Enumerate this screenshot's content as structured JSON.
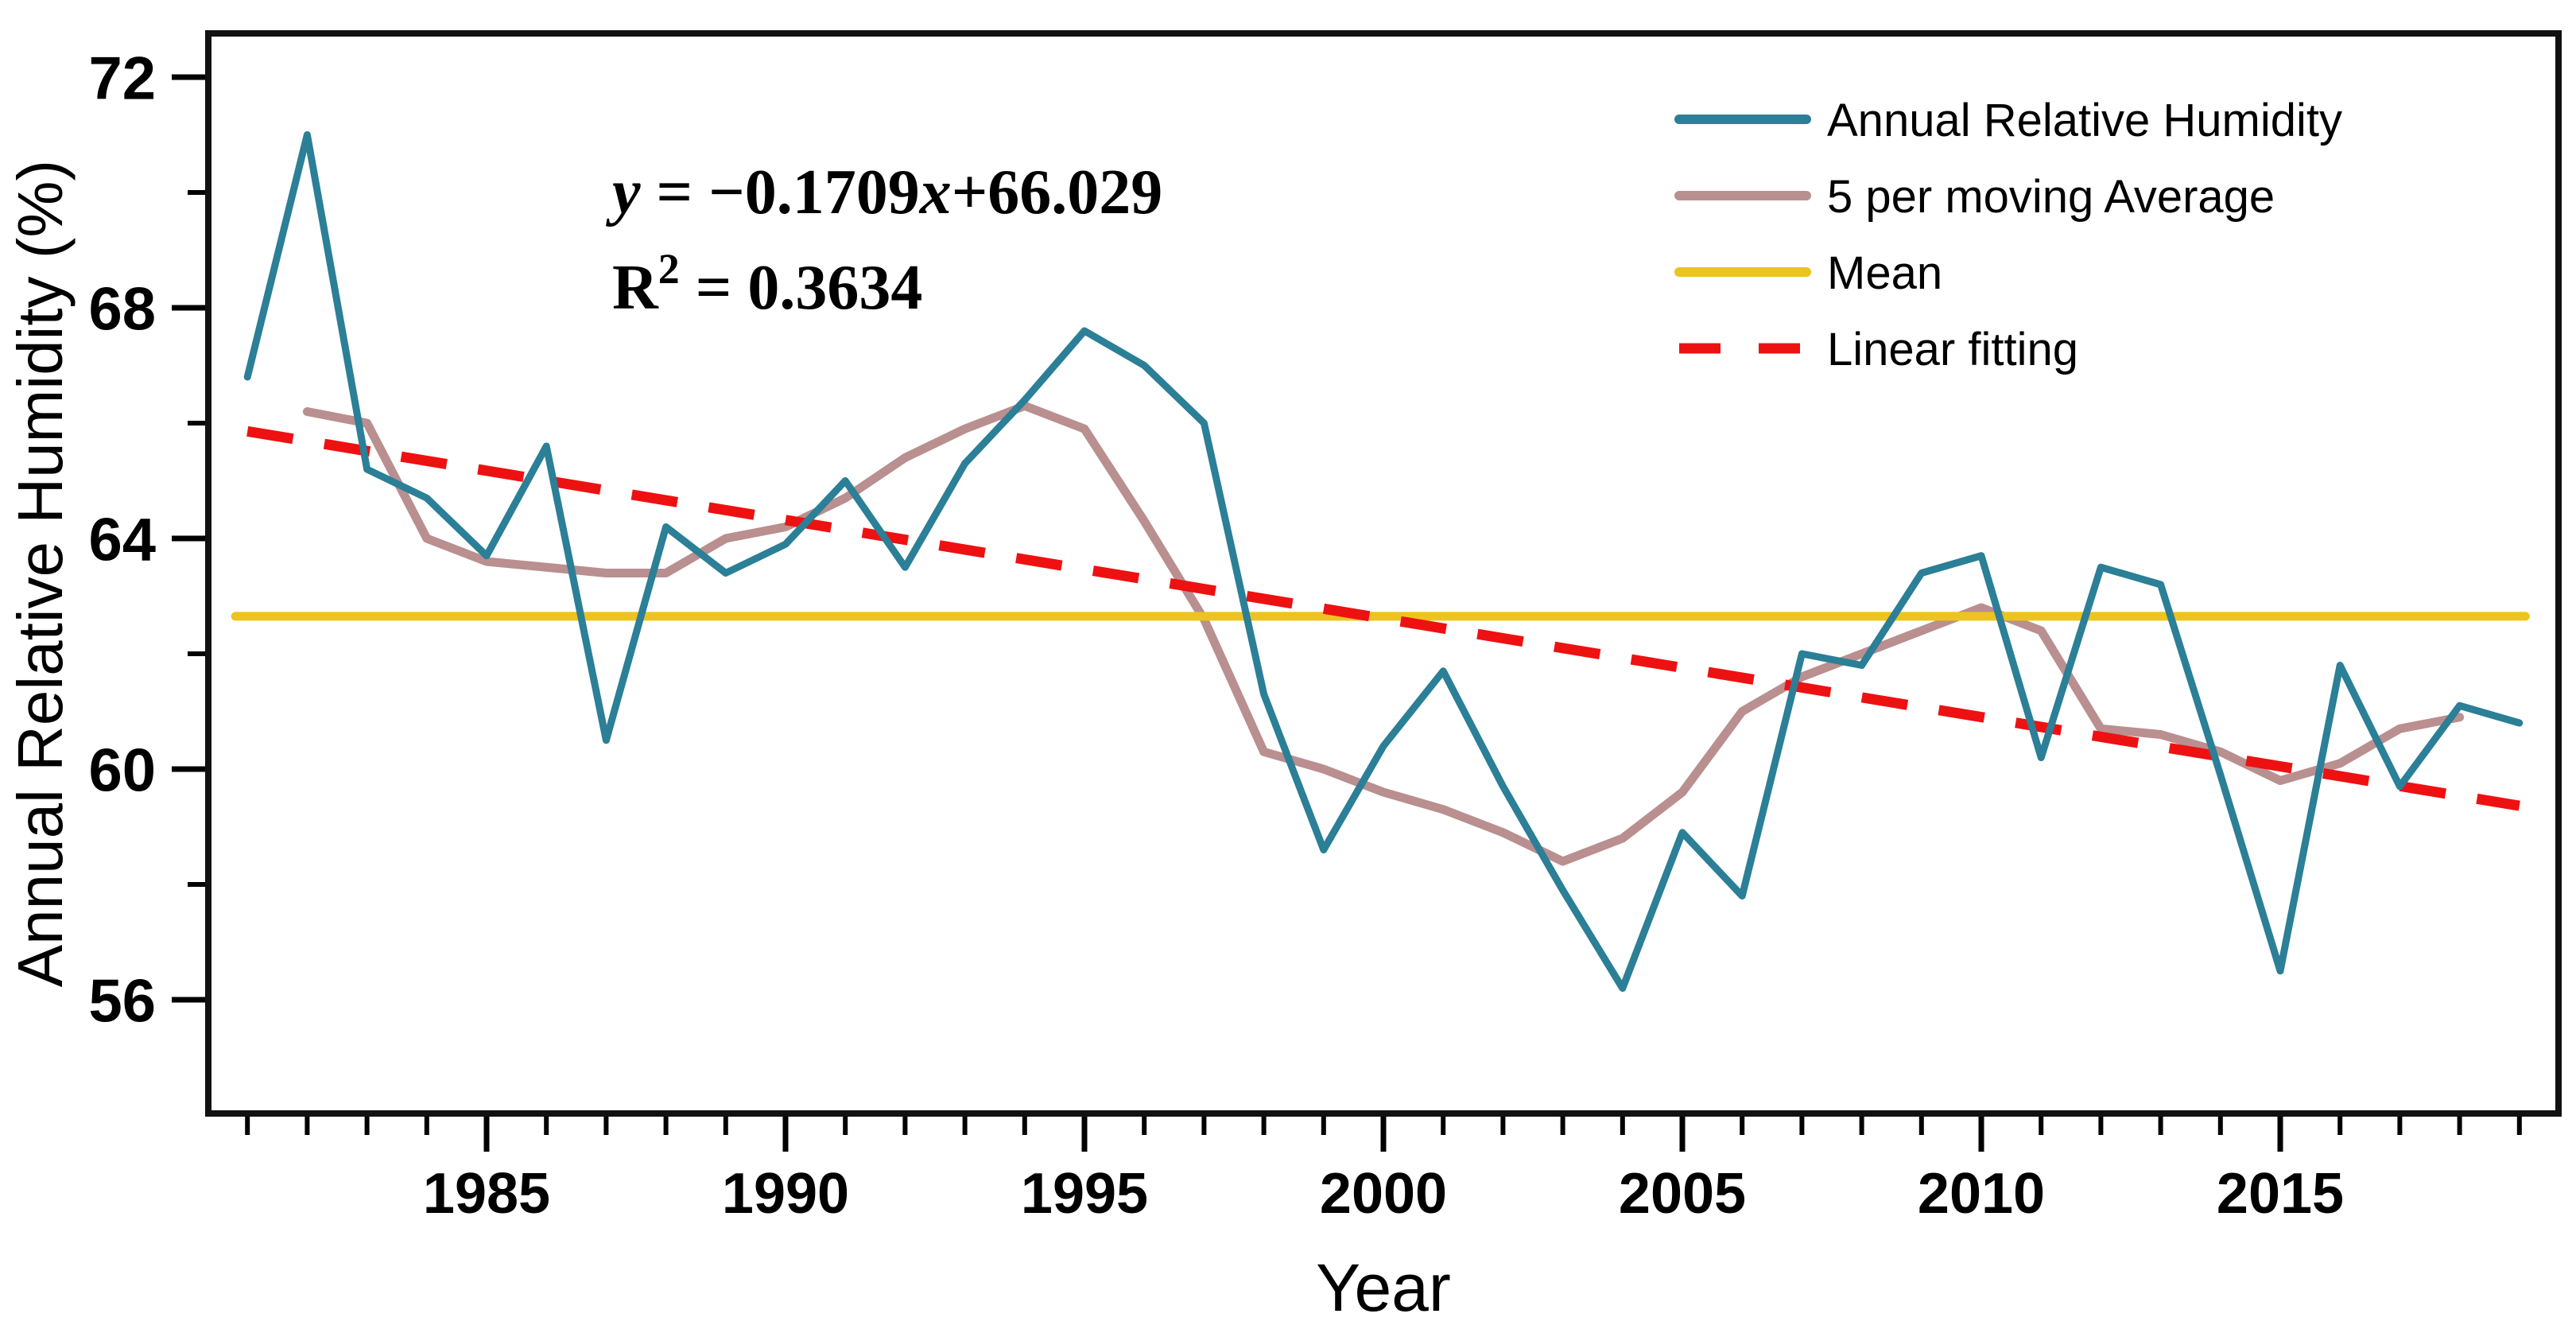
{
  "figure": {
    "xlabel": "Year",
    "ylabel": "Annual Relative Humidity (%)",
    "annotation": {
      "equation_text": "y = −0.1709x+66.029",
      "r_squared_text": "R² = 0.3634",
      "eq_lhs": "y",
      "eq_mid": " = −0.1709",
      "eq_var": "x",
      "eq_tail": "+66.029",
      "r_label": "R",
      "r_sup": "2",
      "r_tail": " = 0.3634"
    },
    "legend": [
      {
        "label": "Annual Relative Humidity",
        "color": "#2b7f97",
        "style": "solid"
      },
      {
        "label": "5 per moving Average",
        "color": "#b98f90",
        "style": "solid"
      },
      {
        "label": "Mean",
        "color": "#ecc41d",
        "style": "solid"
      },
      {
        "label": "Linear fitting",
        "color": "#ee1111",
        "style": "dashed"
      }
    ],
    "colors": {
      "annual": "#2b7f97",
      "moving_average": "#b98f90",
      "mean": "#ecc41d",
      "fit": "#ee1111",
      "frame": "#111111"
    }
  },
  "chart_data": {
    "type": "line",
    "title": "",
    "xlabel": "Year",
    "ylabel": "Annual Relative Humidity (%)",
    "xlim": [
      1980.35,
      2019.65
    ],
    "ylim": [
      54.0,
      72.8
    ],
    "grid": false,
    "legend_position": "upper right",
    "x_ticks_major": [
      1985,
      1990,
      1995,
      2000,
      2005,
      2010,
      2015
    ],
    "x_ticks_minor_every": 1,
    "x_minor_range": [
      1981,
      2019
    ],
    "y_ticks_major": [
      56,
      60,
      64,
      68,
      72
    ],
    "y_ticks_minor": [
      58,
      62,
      66,
      70
    ],
    "x": [
      1981,
      1982,
      1983,
      1984,
      1985,
      1986,
      1987,
      1988,
      1989,
      1990,
      1991,
      1992,
      1993,
      1994,
      1995,
      1996,
      1997,
      1998,
      1999,
      2000,
      2001,
      2002,
      2003,
      2004,
      2005,
      2006,
      2007,
      2008,
      2009,
      2010,
      2011,
      2012,
      2013,
      2014,
      2015,
      2016,
      2017,
      2018,
      2019
    ],
    "series": [
      {
        "name": "Annual Relative Humidity",
        "kind": "data",
        "color": "#2b7f97",
        "x_start": 1981,
        "values": [
          66.8,
          71.0,
          65.2,
          64.7,
          63.7,
          65.6,
          60.5,
          64.2,
          63.4,
          63.9,
          65.0,
          63.5,
          65.3,
          66.4,
          67.6,
          67.0,
          66.0,
          61.3,
          58.6,
          60.4,
          61.7,
          59.7,
          57.9,
          56.2,
          58.9,
          57.8,
          62.0,
          61.8,
          63.4,
          63.7,
          60.2,
          63.5,
          63.2,
          59.9,
          56.5,
          61.8,
          59.7,
          61.1,
          60.8
        ]
      },
      {
        "name": "5 per moving Average",
        "kind": "data",
        "color": "#b98f90",
        "x_start": 1982,
        "values": [
          66.2,
          66.0,
          64.0,
          63.6,
          63.5,
          63.4,
          63.4,
          64.0,
          64.2,
          64.7,
          65.4,
          65.9,
          66.3,
          65.9,
          64.3,
          62.6,
          60.3,
          60.0,
          59.6,
          59.3,
          58.9,
          58.4,
          58.8,
          59.6,
          61.0,
          61.6,
          62.0,
          62.4,
          62.8,
          62.4,
          60.7,
          60.6,
          60.3,
          59.8,
          60.1,
          60.7,
          60.9
        ]
      },
      {
        "name": "Mean",
        "kind": "hline",
        "color": "#ecc41d",
        "value": 62.65,
        "x_span": [
          1980.8,
          2019.1
        ]
      },
      {
        "name": "Linear fitting",
        "kind": "fit",
        "color": "#ee1111",
        "slope": -0.1709,
        "intercept": 66.029,
        "x_index_origin_year": 1980,
        "r2": 0.3634,
        "x_span": [
          1981,
          2019
        ]
      }
    ]
  },
  "geometry_note": "axis pixel map: x=612+(year-1985)*75.2 ; y=677+(64-value)*72.5"
}
